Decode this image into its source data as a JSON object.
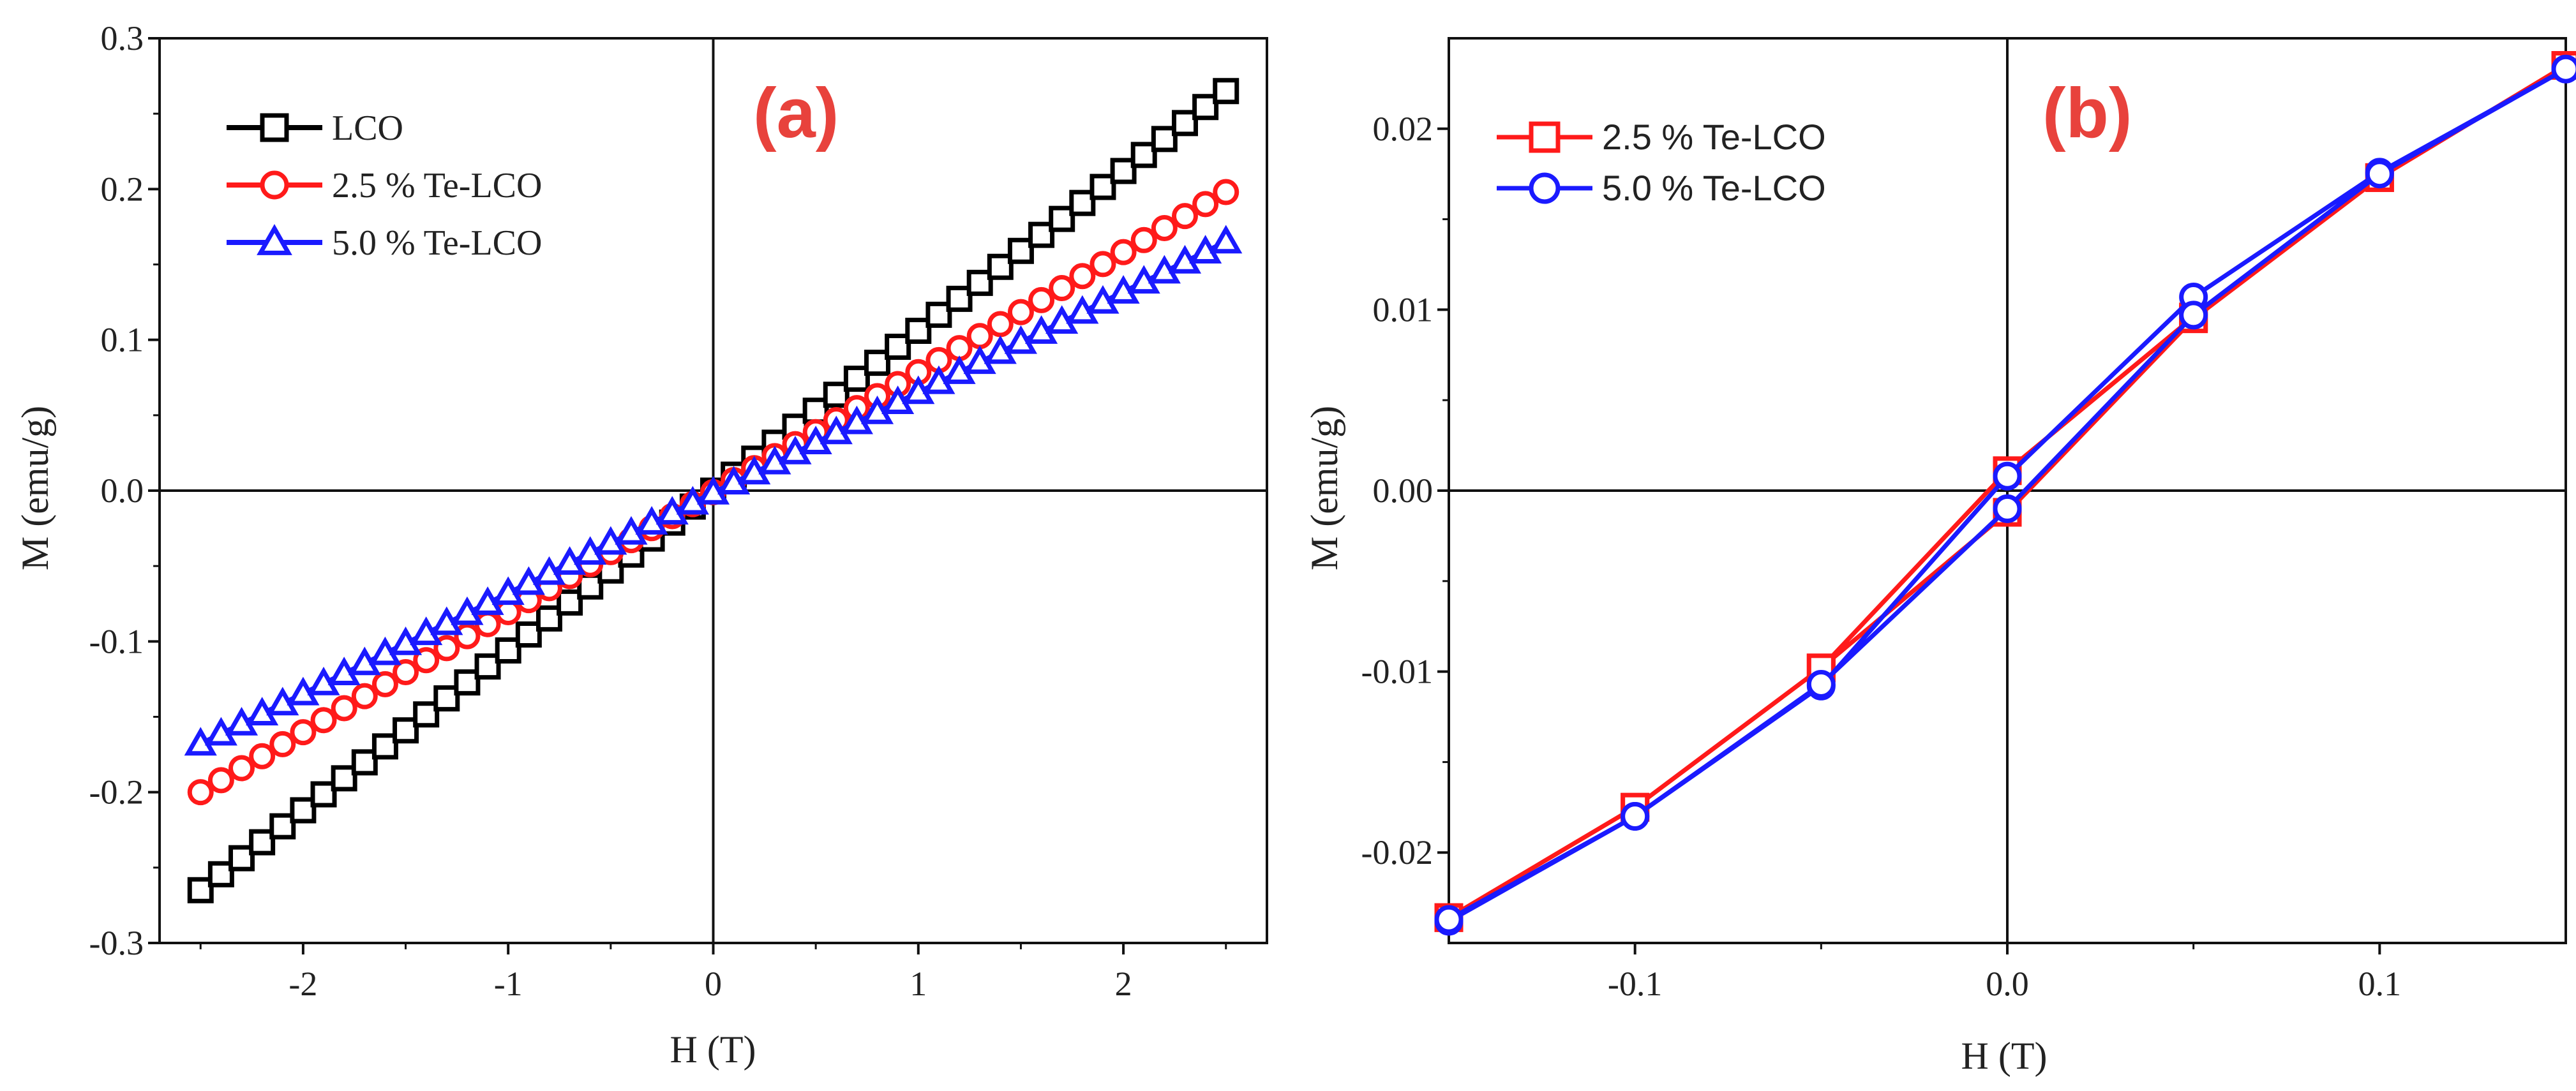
{
  "chart_data": [
    {
      "panel": "(a)",
      "type": "line",
      "xlabel": "H (T)",
      "ylabel": "M (emu/g)",
      "xlim": [
        -2.7,
        2.7
      ],
      "ylim": [
        -0.3,
        0.3
      ],
      "xticks": [
        -2,
        -1,
        0,
        1,
        2
      ],
      "yticks": [
        -0.3,
        -0.2,
        -0.1,
        0.0,
        0.1,
        0.2,
        0.3
      ],
      "xtick_labels": [
        "-2",
        "-1",
        "0",
        "1",
        "2"
      ],
      "ytick_labels": [
        "-0.3",
        "-0.2",
        "-0.1",
        "0.0",
        "0.1",
        "0.2",
        "0.3"
      ],
      "grid": false,
      "zero_lines": true,
      "legend_position": "top-left",
      "x_range": [
        -2.5,
        2.5
      ],
      "point_count": 51,
      "series": [
        {
          "name": "LCO",
          "marker": "square",
          "color": "#000000",
          "endpoints": [
            -0.265,
            0.265
          ]
        },
        {
          "name": "2.5 % Te-LCO",
          "marker": "circle",
          "color": "#ff1a1a",
          "endpoints": [
            -0.2,
            0.198
          ]
        },
        {
          "name": "5.0 % Te-LCO",
          "marker": "triangle",
          "color": "#1a1aff",
          "endpoints": [
            -0.168,
            0.165
          ]
        }
      ]
    },
    {
      "panel": "(b)",
      "type": "line",
      "xlabel": "H (T)",
      "ylabel": "M (emu/g)",
      "xlim": [
        -0.15,
        0.15
      ],
      "ylim": [
        -0.025,
        0.025
      ],
      "xticks": [
        -0.1,
        0.0,
        0.1
      ],
      "yticks": [
        -0.02,
        -0.01,
        0.0,
        0.01,
        0.02
      ],
      "xtick_labels": [
        "-0.1",
        "0.0",
        "0.1"
      ],
      "ytick_labels": [
        "-0.02",
        "-0.01",
        "0.00",
        "0.01",
        "0.02"
      ],
      "grid": false,
      "zero_lines": true,
      "legend_position": "top-left",
      "series": [
        {
          "name": "2.5 % Te-LCO",
          "marker": "square",
          "color": "#ff1a1a",
          "x": [
            -0.15,
            -0.1,
            -0.05,
            0.0,
            0.05,
            0.1,
            0.15,
            0.1,
            0.05,
            0.0,
            -0.05,
            -0.1,
            -0.15
          ],
          "y": [
            -0.0236,
            -0.0175,
            -0.0098,
            0.0011,
            0.0096,
            0.0173,
            0.0235,
            0.0173,
            0.0095,
            -0.0012,
            -0.0098,
            -0.0175,
            -0.0236
          ]
        },
        {
          "name": "5.0 % Te-LCO",
          "marker": "circle",
          "color": "#1a1aff",
          "x": [
            -0.15,
            -0.1,
            -0.05,
            0.0,
            0.05,
            0.1,
            0.15,
            0.1,
            0.05,
            0.0,
            -0.05,
            -0.1,
            -0.15
          ],
          "y": [
            -0.0238,
            -0.018,
            -0.0108,
            0.0008,
            0.0107,
            0.0176,
            0.0233,
            0.0175,
            0.0097,
            -0.001,
            -0.0107,
            -0.018,
            -0.0237
          ]
        }
      ]
    }
  ]
}
